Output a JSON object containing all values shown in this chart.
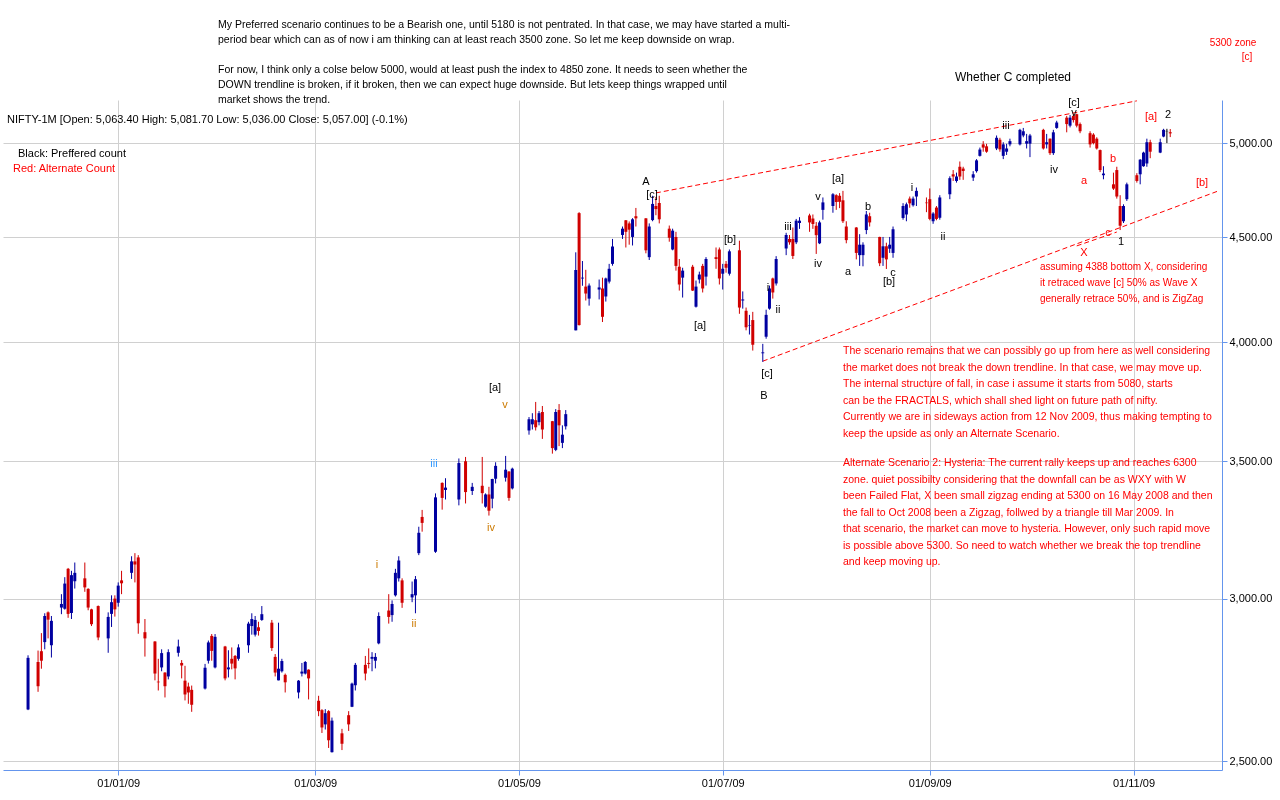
{
  "chart_data": {
    "type": "candlestick",
    "title": "NIFTY-1M [Open: 5,063.40 High: 5,081.70 Low: 5,036.00 Close: 5,057.00] (-0.1%)",
    "x": [
      "2008-12-05",
      "2008-12-08",
      "2008-12-09",
      "2008-12-10",
      "2008-12-11",
      "2008-12-12",
      "2008-12-15",
      "2008-12-16",
      "2008-12-17",
      "2008-12-18",
      "2008-12-19",
      "2008-12-22",
      "2008-12-23",
      "2008-12-24",
      "2008-12-26",
      "2008-12-29",
      "2008-12-30",
      "2008-12-31",
      "2009-01-01",
      "2009-01-02",
      "2009-01-05",
      "2009-01-06",
      "2009-01-07",
      "2009-01-09",
      "2009-01-12",
      "2009-01-13",
      "2009-01-14",
      "2009-01-15",
      "2009-01-16",
      "2009-01-19",
      "2009-01-20",
      "2009-01-21",
      "2009-01-22",
      "2009-01-23",
      "2009-01-27",
      "2009-01-28",
      "2009-01-29",
      "2009-01-30",
      "2009-02-02",
      "2009-02-03",
      "2009-02-04",
      "2009-02-05",
      "2009-02-06",
      "2009-02-09",
      "2009-02-10",
      "2009-02-11",
      "2009-02-12",
      "2009-02-13",
      "2009-02-16",
      "2009-02-17",
      "2009-02-18",
      "2009-02-19",
      "2009-02-20",
      "2009-02-24",
      "2009-02-25",
      "2009-02-26",
      "2009-02-27",
      "2009-03-02",
      "2009-03-03",
      "2009-03-04",
      "2009-03-05",
      "2009-03-06",
      "2009-03-09",
      "2009-03-11",
      "2009-03-12",
      "2009-03-13",
      "2009-03-16",
      "2009-03-17",
      "2009-03-18",
      "2009-03-19",
      "2009-03-20",
      "2009-03-23",
      "2009-03-24",
      "2009-03-25",
      "2009-03-26",
      "2009-03-27",
      "2009-03-30",
      "2009-03-31",
      "2009-04-01",
      "2009-04-02",
      "2009-04-06",
      "2009-04-08",
      "2009-04-09",
      "2009-04-13",
      "2009-04-15",
      "2009-04-17",
      "2009-04-20",
      "2009-04-21",
      "2009-04-22",
      "2009-04-23",
      "2009-04-24",
      "2009-04-27",
      "2009-04-28",
      "2009-04-29",
      "2009-05-04",
      "2009-05-05",
      "2009-05-06",
      "2009-05-07",
      "2009-05-08",
      "2009-05-11",
      "2009-05-12",
      "2009-05-13",
      "2009-05-14",
      "2009-05-15",
      "2009-05-18",
      "2009-05-19",
      "2009-05-20",
      "2009-05-21",
      "2009-05-22",
      "2009-05-25",
      "2009-05-26",
      "2009-05-27",
      "2009-05-28",
      "2009-05-29",
      "2009-06-01",
      "2009-06-02",
      "2009-06-03",
      "2009-06-04",
      "2009-06-05",
      "2009-06-08",
      "2009-06-09",
      "2009-06-10",
      "2009-06-11",
      "2009-06-12",
      "2009-06-15",
      "2009-06-16",
      "2009-06-17",
      "2009-06-18",
      "2009-06-19",
      "2009-06-22",
      "2009-06-23",
      "2009-06-24",
      "2009-06-25",
      "2009-06-26",
      "2009-06-29",
      "2009-06-30",
      "2009-07-01",
      "2009-07-02",
      "2009-07-03",
      "2009-07-06",
      "2009-07-07",
      "2009-07-08",
      "2009-07-09",
      "2009-07-10",
      "2009-07-13",
      "2009-07-14",
      "2009-07-15",
      "2009-07-16",
      "2009-07-17",
      "2009-07-20",
      "2009-07-21",
      "2009-07-22",
      "2009-07-23",
      "2009-07-24",
      "2009-07-27",
      "2009-07-28",
      "2009-07-29",
      "2009-07-30",
      "2009-07-31",
      "2009-08-03",
      "2009-08-04",
      "2009-08-05",
      "2009-08-06",
      "2009-08-07",
      "2009-08-10",
      "2009-08-11",
      "2009-08-12",
      "2009-08-13",
      "2009-08-14",
      "2009-08-17",
      "2009-08-18",
      "2009-08-19",
      "2009-08-20",
      "2009-08-21",
      "2009-08-24",
      "2009-08-25",
      "2009-08-26",
      "2009-08-27",
      "2009-08-28",
      "2009-08-31",
      "2009-09-01",
      "2009-09-02",
      "2009-09-03",
      "2009-09-04",
      "2009-09-07",
      "2009-09-08",
      "2009-09-09",
      "2009-09-10",
      "2009-09-11",
      "2009-09-14",
      "2009-09-15",
      "2009-09-16",
      "2009-09-17",
      "2009-09-18",
      "2009-09-21",
      "2009-09-22",
      "2009-09-23",
      "2009-09-24",
      "2009-09-25",
      "2009-09-28",
      "2009-09-29",
      "2009-09-30",
      "2009-10-01",
      "2009-10-05",
      "2009-10-06",
      "2009-10-07",
      "2009-10-08",
      "2009-10-09",
      "2009-10-12",
      "2009-10-13",
      "2009-10-14",
      "2009-10-15",
      "2009-10-16",
      "2009-10-19",
      "2009-10-20",
      "2009-10-21",
      "2009-10-22",
      "2009-10-23",
      "2009-10-26",
      "2009-10-27",
      "2009-10-28",
      "2009-10-29",
      "2009-10-30",
      "2009-11-02",
      "2009-11-03",
      "2009-11-04",
      "2009-11-05",
      "2009-11-06",
      "2009-11-09",
      "2009-11-10",
      "2009-11-11",
      "2009-11-12"
    ],
    "ohlc": [
      [
        2649,
        2815,
        2647,
        2807
      ],
      [
        2794,
        2830,
        2702,
        2719
      ],
      [
        2828,
        2886,
        2773,
        2798
      ],
      [
        2857,
        2951,
        2834,
        2942
      ],
      [
        2954,
        2957,
        2869,
        2930
      ],
      [
        2847,
        2942,
        2808,
        2926
      ],
      [
        2970,
        3015,
        2948,
        2982
      ],
      [
        2966,
        3073,
        2963,
        3051
      ],
      [
        3102,
        3105,
        2936,
        2949
      ],
      [
        2952,
        3095,
        2932,
        3080
      ],
      [
        3059,
        3124,
        3034,
        3088
      ],
      [
        3069,
        3124,
        3023,
        3038
      ],
      [
        3033,
        3035,
        2961,
        2970
      ],
      [
        2964,
        2966,
        2909,
        2915
      ],
      [
        2975,
        2977,
        2863,
        2872
      ],
      [
        2869,
        2954,
        2823,
        2939
      ],
      [
        2949,
        3011,
        2906,
        2988
      ],
      [
        3000,
        3011,
        2940,
        2964
      ],
      [
        2986,
        3055,
        2973,
        3044
      ],
      [
        3062,
        3095,
        3015,
        3052
      ],
      [
        3088,
        3146,
        3067,
        3128
      ],
      [
        3128,
        3157,
        3055,
        3117
      ],
      [
        3142,
        3150,
        2884,
        2918
      ],
      [
        2889,
        2932,
        2811,
        2869
      ],
      [
        2859,
        2860,
        2737,
        2758
      ],
      [
        2733,
        2804,
        2706,
        2731
      ],
      [
        2777,
        2834,
        2765,
        2822
      ],
      [
        2761,
        2762,
        2685,
        2719
      ],
      [
        2749,
        2834,
        2740,
        2825
      ],
      [
        2823,
        2865,
        2811,
        2843
      ],
      [
        2791,
        2800,
        2743,
        2783
      ],
      [
        2736,
        2782,
        2676,
        2694
      ],
      [
        2718,
        2730,
        2666,
        2700
      ],
      [
        2708,
        2721,
        2642,
        2663
      ],
      [
        2712,
        2788,
        2709,
        2776
      ],
      [
        2798,
        2862,
        2789,
        2856
      ],
      [
        2877,
        2883,
        2798,
        2829
      ],
      [
        2777,
        2883,
        2774,
        2874
      ],
      [
        2843,
        2845,
        2737,
        2743
      ],
      [
        2771,
        2831,
        2746,
        2777
      ],
      [
        2804,
        2840,
        2771,
        2789
      ],
      [
        2813,
        2816,
        2740,
        2774
      ],
      [
        2804,
        2850,
        2798,
        2840
      ],
      [
        2847,
        2923,
        2823,
        2917
      ],
      [
        2909,
        2951,
        2881,
        2932
      ],
      [
        2881,
        2942,
        2875,
        2929
      ],
      [
        2905,
        2923,
        2878,
        2893
      ],
      [
        2929,
        2975,
        2926,
        2948
      ],
      [
        2920,
        2929,
        2829,
        2838
      ],
      [
        2810,
        2819,
        2749,
        2761
      ],
      [
        2737,
        2920,
        2737,
        2773
      ],
      [
        2765,
        2804,
        2761,
        2797
      ],
      [
        2754,
        2758,
        2700,
        2731
      ],
      [
        2700,
        2738,
        2682,
        2736
      ],
      [
        2758,
        2791,
        2749,
        2764
      ],
      [
        2758,
        2797,
        2755,
        2794
      ],
      [
        2770,
        2771,
        2679,
        2743
      ],
      [
        2675,
        2690,
        2629,
        2644
      ],
      [
        2647,
        2650,
        2580,
        2596
      ],
      [
        2605,
        2650,
        2590,
        2638
      ],
      [
        2644,
        2647,
        2537,
        2559
      ],
      [
        2525,
        2625,
        2524,
        2616
      ],
      [
        2579,
        2592,
        2531,
        2549
      ],
      [
        2632,
        2644,
        2586,
        2605
      ],
      [
        2657,
        2730,
        2656,
        2727
      ],
      [
        2722,
        2791,
        2706,
        2785
      ],
      [
        2785,
        2813,
        2737,
        2758
      ],
      [
        2791,
        2837,
        2774,
        2788
      ],
      [
        2804,
        2825,
        2765,
        2810
      ],
      [
        2798,
        2822,
        2774,
        2810
      ],
      [
        2853,
        2954,
        2850,
        2942
      ],
      [
        2960,
        3015,
        2917,
        2939
      ],
      [
        2945,
        2994,
        2923,
        2982
      ],
      [
        3011,
        3102,
        3007,
        3088
      ],
      [
        3069,
        3146,
        3058,
        3131
      ],
      [
        3062,
        3069,
        2969,
        2986
      ],
      [
        3004,
        3058,
        2988,
        3015
      ],
      [
        3011,
        3077,
        2951,
        3066
      ],
      [
        3157,
        3252,
        3150,
        3230
      ],
      [
        3288,
        3314,
        3234,
        3266
      ],
      [
        3162,
        3376,
        3158,
        3361
      ],
      [
        3416,
        3418,
        3315,
        3359
      ],
      [
        3389,
        3434,
        3353,
        3398
      ],
      [
        3353,
        3511,
        3331,
        3493
      ],
      [
        3500,
        3517,
        3338,
        3381
      ],
      [
        3385,
        3416,
        3370,
        3401
      ],
      [
        3405,
        3517,
        3338,
        3377
      ],
      [
        3326,
        3376,
        3322,
        3372
      ],
      [
        3372,
        3401,
        3293,
        3311
      ],
      [
        3356,
        3432,
        3320,
        3431
      ],
      [
        3432,
        3496,
        3414,
        3482
      ],
      [
        3436,
        3521,
        3421,
        3467
      ],
      [
        3460,
        3461,
        3348,
        3359
      ],
      [
        3395,
        3475,
        3391,
        3471
      ],
      [
        3623,
        3678,
        3606,
        3669
      ],
      [
        3648,
        3694,
        3627,
        3669
      ],
      [
        3665,
        3741,
        3623,
        3636
      ],
      [
        3657,
        3703,
        3644,
        3694
      ],
      [
        3699,
        3724,
        3589,
        3627
      ],
      [
        3661,
        3662,
        3530,
        3552
      ],
      [
        3545,
        3711,
        3540,
        3699
      ],
      [
        3707,
        3732,
        3560,
        3644
      ],
      [
        3573,
        3644,
        3552,
        3606
      ],
      [
        3640,
        3707,
        3627,
        3690
      ],
      [
        4054,
        4425,
        4054,
        4338
      ],
      [
        4624,
        4629,
        4076,
        4078
      ],
      [
        4297,
        4382,
        4262,
        4301
      ],
      [
        4258,
        4339,
        4192,
        4225
      ],
      [
        4201,
        4273,
        4168,
        4263
      ],
      [
        4244,
        4292,
        4197,
        4254
      ],
      [
        4249,
        4301,
        4092,
        4116
      ],
      [
        4211,
        4301,
        4187,
        4297
      ],
      [
        4282,
        4368,
        4273,
        4344
      ],
      [
        4368,
        4492,
        4359,
        4454
      ],
      [
        4512,
        4555,
        4492,
        4544
      ],
      [
        4587,
        4588,
        4449,
        4528
      ],
      [
        4571,
        4581,
        4463,
        4539
      ],
      [
        4502,
        4598,
        4459,
        4592
      ],
      [
        4608,
        4651,
        4555,
        4597
      ],
      [
        4597,
        4598,
        4420,
        4435
      ],
      [
        4401,
        4571,
        4387,
        4555
      ],
      [
        4588,
        4715,
        4582,
        4672
      ],
      [
        4661,
        4709,
        4613,
        4645
      ],
      [
        4677,
        4715,
        4571,
        4592
      ],
      [
        4544,
        4560,
        4478,
        4498
      ],
      [
        4439,
        4544,
        4435,
        4534
      ],
      [
        4502,
        4528,
        4335,
        4358
      ],
      [
        4354,
        4392,
        4239,
        4268
      ],
      [
        4301,
        4349,
        4206,
        4335
      ],
      [
        4354,
        4363,
        4237,
        4239
      ],
      [
        4163,
        4287,
        4159,
        4258
      ],
      [
        4292,
        4330,
        4273,
        4316
      ],
      [
        4358,
        4368,
        4230,
        4249
      ],
      [
        4306,
        4401,
        4263,
        4392
      ],
      [
        4401,
        4449,
        4344,
        4392
      ],
      [
        4439,
        4449,
        4268,
        4297
      ],
      [
        4320,
        4368,
        4244,
        4344
      ],
      [
        4368,
        4382,
        4325,
        4349
      ],
      [
        4320,
        4439,
        4311,
        4430
      ],
      [
        4435,
        4483,
        4130,
        4159
      ],
      [
        4192,
        4235,
        4154,
        4197
      ],
      [
        4144,
        4159,
        4054,
        4068
      ],
      [
        4076,
        4125,
        4035,
        4078
      ],
      [
        4101,
        4139,
        3963,
        3989
      ],
      [
        3951,
        3993,
        3913,
        3955
      ],
      [
        4025,
        4149,
        4016,
        4125
      ],
      [
        4154,
        4263,
        4149,
        4249
      ],
      [
        4297,
        4301,
        4201,
        4230
      ],
      [
        4273,
        4406,
        4263,
        4392
      ],
      [
        4444,
        4523,
        4411,
        4512
      ],
      [
        4492,
        4512,
        4463,
        4475
      ],
      [
        4492,
        4550,
        4392,
        4407
      ],
      [
        4475,
        4594,
        4466,
        4585
      ],
      [
        4573,
        4603,
        4543,
        4585
      ],
      [
        4612,
        4621,
        4528,
        4576
      ],
      [
        4596,
        4617,
        4543,
        4568
      ],
      [
        4559,
        4578,
        4417,
        4511
      ],
      [
        4470,
        4585,
        4466,
        4576
      ],
      [
        4641,
        4706,
        4590,
        4680
      ],
      [
        4661,
        4729,
        4626,
        4723
      ],
      [
        4718,
        4723,
        4641,
        4682
      ],
      [
        4715,
        4729,
        4650,
        4683
      ],
      [
        4691,
        4741,
        4573,
        4582
      ],
      [
        4555,
        4582,
        4470,
        4486
      ],
      [
        4550,
        4552,
        4390,
        4422
      ],
      [
        4411,
        4516,
        4358,
        4463
      ],
      [
        4411,
        4475,
        4356,
        4463
      ],
      [
        4537,
        4635,
        4516,
        4617
      ],
      [
        4608,
        4626,
        4555,
        4576
      ],
      [
        4502,
        4503,
        4357,
        4371
      ],
      [
        4398,
        4502,
        4358,
        4455
      ],
      [
        4455,
        4473,
        4343,
        4390
      ],
      [
        4443,
        4502,
        4422,
        4463
      ],
      [
        4422,
        4555,
        4398,
        4541
      ],
      [
        4599,
        4676,
        4590,
        4661
      ],
      [
        4617,
        4679,
        4582,
        4670
      ],
      [
        4700,
        4711,
        4652,
        4675
      ],
      [
        4665,
        4711,
        4658,
        4700
      ],
      [
        4711,
        4759,
        4661,
        4741
      ],
      [
        4679,
        4706,
        4629,
        4676
      ],
      [
        4697,
        4754,
        4587,
        4594
      ],
      [
        4582,
        4629,
        4569,
        4622
      ],
      [
        4653,
        4661,
        4587,
        4594
      ],
      [
        4600,
        4718,
        4590,
        4706
      ],
      [
        4723,
        4819,
        4697,
        4809
      ],
      [
        4830,
        4853,
        4794,
        4818
      ],
      [
        4794,
        4839,
        4785,
        4818
      ],
      [
        4871,
        4900,
        4800,
        4818
      ],
      [
        4861,
        4871,
        4800,
        4848
      ],
      [
        4812,
        4847,
        4794,
        4830
      ],
      [
        4847,
        4913,
        4839,
        4906
      ],
      [
        4931,
        4977,
        4927,
        4966
      ],
      [
        4995,
        5013,
        4954,
        4977
      ],
      [
        4984,
        4998,
        4948,
        4954
      ],
      [
        4972,
        5045,
        4963,
        5032
      ],
      [
        5021,
        5032,
        4954,
        4967
      ],
      [
        4931,
        5007,
        4913,
        4995
      ],
      [
        4954,
        4998,
        4936,
        4972
      ],
      [
        4995,
        5027,
        4984,
        5013
      ],
      [
        4995,
        5083,
        4989,
        5077
      ],
      [
        5045,
        5088,
        5035,
        5069
      ],
      [
        4999,
        5054,
        4972,
        5013
      ],
      [
        4999,
        5054,
        4924,
        5045
      ],
      [
        5077,
        5083,
        4966,
        4972
      ],
      [
        4995,
        5054,
        4972,
        5007
      ],
      [
        5027,
        5028,
        4936,
        4946
      ],
      [
        4946,
        5077,
        4936,
        5063
      ],
      [
        5088,
        5129,
        5083,
        5119
      ],
      [
        5147,
        5157,
        5063,
        5110
      ],
      [
        5101,
        5162,
        5091,
        5147
      ],
      [
        5157,
        5167,
        5119,
        5133
      ],
      [
        5167,
        5170,
        5091,
        5101
      ],
      [
        5110,
        5119,
        5058,
        5069
      ],
      [
        5058,
        5069,
        4977,
        4995
      ],
      [
        5050,
        5058,
        4995,
        5002
      ],
      [
        5027,
        5035,
        4966,
        4972
      ],
      [
        4963,
        4966,
        4842,
        4853
      ],
      [
        4825,
        4874,
        4803,
        4834
      ],
      [
        4776,
        4839,
        4746,
        4753
      ],
      [
        4853,
        4871,
        4700,
        4711
      ],
      [
        4661,
        4718,
        4537,
        4559
      ],
      [
        4582,
        4670,
        4573,
        4661
      ],
      [
        4697,
        4785,
        4688,
        4776
      ],
      [
        4825,
        4836,
        4785,
        4794
      ],
      [
        4830,
        4913,
        4776,
        4910
      ],
      [
        4874,
        4954,
        4871,
        4949
      ],
      [
        4889,
        5027,
        4871,
        5007
      ],
      [
        5007,
        5021,
        4918,
        4954
      ],
      [
        4949,
        5027,
        4946,
        5007
      ],
      [
        5039,
        5083,
        5035,
        5077
      ],
      [
        5069,
        5083,
        5002,
        5071
      ],
      [
        5063.4,
        5081.7,
        5036,
        5057
      ]
    ],
    "colors": [
      "#0000a0",
      "#d00000",
      "#d00000",
      "#0000a0",
      "#d00000",
      "#0000a0",
      "#0000a0",
      "#0000a0",
      "#d00000",
      "#0000a0",
      "#0000a0",
      "#d00000",
      "#d00000",
      "#d00000",
      "#d00000",
      "#0000a0",
      "#0000a0",
      "#d00000",
      "#0000a0",
      "#d00000",
      "#0000a0",
      "#d00000",
      "#d00000",
      "#d00000",
      "#d00000",
      "#d00000",
      "#0000a0",
      "#d00000",
      "#0000a0",
      "#0000a0",
      "#d00000",
      "#d00000",
      "#d00000",
      "#d00000",
      "#0000a0",
      "#0000a0",
      "#d00000",
      "#0000a0",
      "#d00000",
      "#0000a0",
      "#d00000",
      "#d00000",
      "#0000a0",
      "#0000a0",
      "#0000a0",
      "#0000a0",
      "#d00000",
      "#0000a0",
      "#d00000",
      "#d00000",
      "#0000a0",
      "#0000a0",
      "#d00000",
      "#0000a0",
      "#0000a0",
      "#0000a0",
      "#d00000",
      "#d00000",
      "#d00000",
      "#0000a0",
      "#d00000",
      "#0000a0",
      "#d00000",
      "#d00000",
      "#0000a0",
      "#0000a0",
      "#d00000",
      "#d00000",
      "#0000a0",
      "#0000a0",
      "#0000a0",
      "#d00000",
      "#0000a0",
      "#0000a0",
      "#0000a0",
      "#d00000",
      "#0000a0",
      "#0000a0",
      "#0000a0",
      "#d00000",
      "#0000a0",
      "#d00000",
      "#0000a0",
      "#0000a0",
      "#d00000",
      "#0000a0",
      "#d00000",
      "#0000a0",
      "#d00000",
      "#0000a0",
      "#0000a0",
      "#0000a0",
      "#d00000",
      "#0000a0",
      "#0000a0",
      "#0000a0",
      "#d00000",
      "#0000a0",
      "#d00000",
      "#d00000",
      "#0000a0",
      "#d00000",
      "#0000a0",
      "#0000a0",
      "#0000a0",
      "#d00000",
      "#0000a0",
      "#d00000",
      "#0000a0",
      "#0000a0",
      "#d00000",
      "#0000a0",
      "#0000a0",
      "#0000a0",
      "#0000a0",
      "#d00000",
      "#d00000",
      "#0000a0",
      "#d00000",
      "#d00000",
      "#0000a0",
      "#0000a0",
      "#d00000",
      "#d00000",
      "#d00000",
      "#0000a0",
      "#d00000",
      "#d00000",
      "#0000a0",
      "#d00000",
      "#0000a0",
      "#0000a0",
      "#d00000",
      "#0000a0",
      "#d00000",
      "#d00000",
      "#0000a0",
      "#d00000",
      "#0000a0",
      "#d00000",
      "#0000a0",
      "#d00000",
      "#0000a0",
      "#d00000",
      "#0000a0",
      "#0000a0",
      "#0000a0",
      "#d00000",
      "#0000a0",
      "#0000a0",
      "#d00000",
      "#d00000",
      "#0000a0",
      "#0000a0",
      "#d00000",
      "#d00000",
      "#d00000",
      "#0000a0",
      "#0000a0",
      "#0000a0",
      "#d00000",
      "#d00000",
      "#d00000",
      "#d00000",
      "#d00000",
      "#0000a0",
      "#0000a0",
      "#0000a0",
      "#d00000",
      "#d00000",
      "#0000a0",
      "#d00000",
      "#0000a0",
      "#0000a0",
      "#0000a0",
      "#0000a0",
      "#d00000",
      "#0000a0",
      "#0000a0",
      "#d00000",
      "#d00000",
      "#0000a0",
      "#d00000",
      "#0000a0",
      "#0000a0",
      "#d00000",
      "#0000a0",
      "#d00000",
      "#d00000",
      "#0000a0",
      "#0000a0",
      "#0000a0",
      "#d00000",
      "#d00000",
      "#0000a0",
      "#d00000",
      "#0000a0",
      "#0000a0",
      "#0000a0",
      "#0000a0",
      "#0000a0",
      "#0000a0",
      "#0000a0",
      "#d00000",
      "#0000a0",
      "#d00000",
      "#0000a0",
      "#0000a0",
      "#d00000",
      "#0000a0",
      "#d00000",
      "#d00000",
      "#d00000",
      "#d00000",
      "#d00000",
      "#d00000",
      "#d00000",
      "#0000a0",
      "#d00000",
      "#d00000",
      "#d00000",
      "#0000a0",
      "#0000a0",
      "#d00000",
      "#0000a0",
      "#0000a0",
      "#0000a0",
      "#d00000",
      "#0000a0",
      "#0000a0",
      "#000000",
      "#d00000"
    ],
    "series": [
      {
        "type": "line",
        "color": "#ff0000",
        "line_style": "dashed",
        "x": [
          "2009-06-11",
          "2009-11-02"
        ],
        "values": [
          4730,
          5245
        ]
      },
      {
        "type": "line",
        "color": "#ff0000",
        "line_style": "dashed",
        "x": [
          "2009-07-13",
          "2009-11-26"
        ],
        "values": [
          3916,
          4738
        ]
      },
      {
        "type": "line",
        "color": "#ff0000",
        "line_style": "dashed",
        "x": [
          "2009-10-15",
          "2009-10-27"
        ],
        "values": [
          4457,
          4527
        ]
      }
    ],
    "xlim": [
      "2008-11-29",
      "2009-11-26"
    ],
    "xticks": [
      {
        "value": "2009-01-01",
        "label": "01/01/09"
      },
      {
        "value": "2009-03-01",
        "label": "01/03/09"
      },
      {
        "value": "2009-05-01",
        "label": "01/05/09"
      },
      {
        "value": "2009-07-01",
        "label": "01/07/09"
      },
      {
        "value": "2009-09-01",
        "label": "01/09/09"
      },
      {
        "value": "2009-11-01",
        "label": "01/11/09"
      }
    ],
    "ylim": [
      2475,
      5250
    ],
    "yticks": [
      {
        "value": 2500,
        "label": "2,500.00"
      },
      {
        "value": 3000,
        "label": "3,000.00"
      },
      {
        "value": 3500,
        "label": "3,500.00"
      },
      {
        "value": 4000,
        "label": "4,000.00"
      },
      {
        "value": 4500,
        "label": "4,500.00"
      },
      {
        "value": 5000,
        "label": "5,000.00"
      }
    ],
    "log": "y",
    "grid": true,
    "annotations": [
      "My Preferred scenario continues to be a Bearish one, until 5180 is not pentrated. In that case, we may have started a multi-period bear which can as of now i am thinking can at least reach 3500 zone. So let me keep downside on wrap.",
      "For now, I think only a colse below 5000, would at least push the index to 4850 zone. It needs to seen whether the DOWN trendline is broken, if it broken, then we can expect huge downside. But lets keep things wrapped until market shows the trend.",
      "Whether C completed",
      "5300 zone",
      "[c]",
      "Black: Preffered count",
      "Red: Alternate Count",
      "assuming 4388 bottom X, considering it retraced wave [c] 50% as Wave X generally retrace 50%, and is ZigZag",
      "The scenario remains that we can possibly go up from here as well considering the market does not break the down trendline. In that case, we may move up. The internal structure of fall, in case i assume it starts from 5080, starts can be the FRACTALS, which shall shed light on future path of nifty. Currently we are in sideways action from 12 Nov 2009, thus making tempting to keep the upside as only an Alternate Scenario.",
      "Alternate Scenario 2: Hysteria: The current rally keeps up and reaches 6300 zone. quiet possibilty considering that the downfall can be as WXY with W been Failed Flat, X been small zigzag ending at 5300 on 16 May 2008 and then the fall to Oct 2008 been a Zigzag, follwed by a triangle till Mar 2009. In that scenario, the market can move to hysteria. However, only such rapid move is possible above 5300. So need to watch whether we break the top trendline and keep moving up.",
      "A",
      "[c]",
      "[b]",
      "[a]",
      "[c]",
      "B",
      "i",
      "ii",
      "iii",
      "iv",
      "v",
      "[a]",
      "a",
      "b",
      "[b]",
      "c",
      "i",
      "ii",
      "iii",
      "iv",
      "[c]",
      "v",
      "1",
      "2",
      "[a]",
      "v",
      "iii",
      "iv",
      "i",
      "ii",
      "a",
      "b",
      "c",
      "X",
      "[a]",
      "[b]"
    ]
  }
}
